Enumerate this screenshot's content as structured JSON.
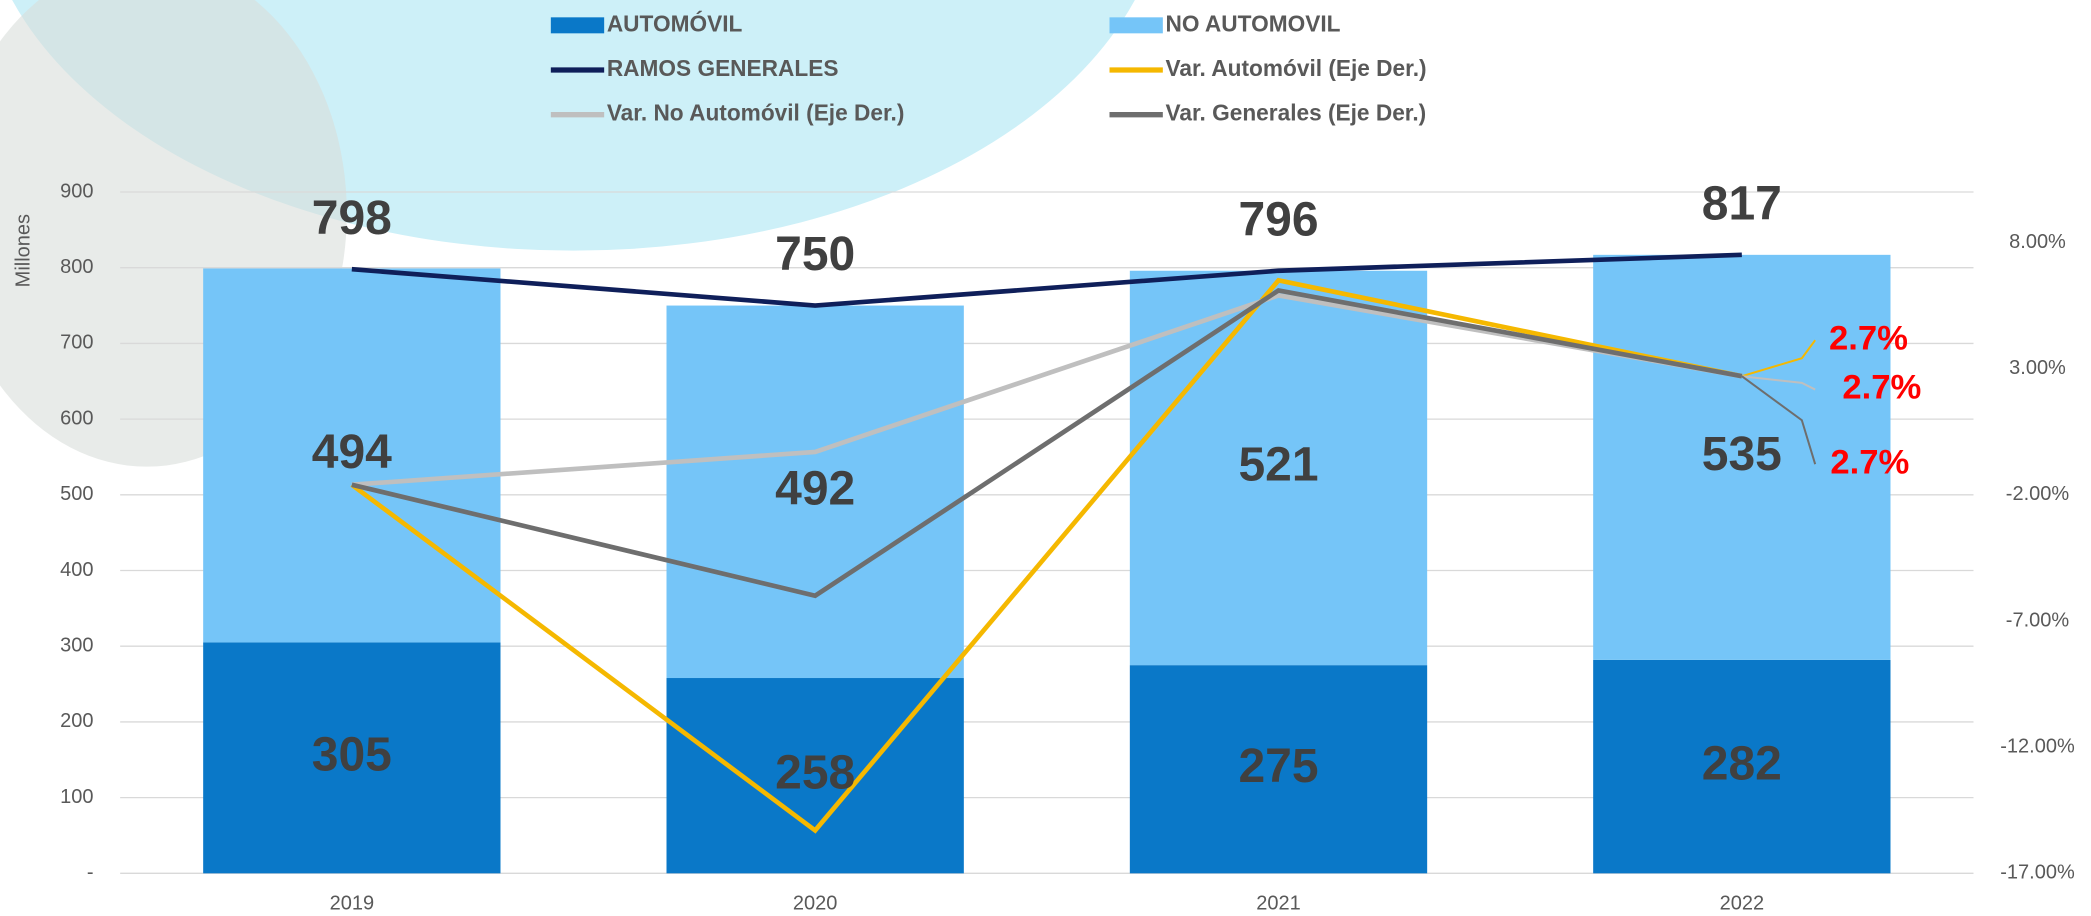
{
  "chart_data": {
    "type": "bar",
    "categories": [
      "2019",
      "2020",
      "2021",
      "2022"
    ],
    "y_label": "Millones",
    "ylim": [
      0,
      900
    ],
    "yticks": [
      {
        "value": 0,
        "label": "-"
      },
      100,
      200,
      300,
      400,
      500,
      600,
      700,
      800,
      900
    ],
    "y2lim": [
      -17,
      10
    ],
    "y2ticks": [
      {
        "value": -17,
        "label": "-17.00%"
      },
      {
        "value": -12,
        "label": "-12.00%"
      },
      {
        "value": -7,
        "label": "-7.00%"
      },
      {
        "value": -2,
        "label": "-2.00%"
      },
      {
        "value": 3,
        "label": "3.00%"
      },
      {
        "value": 8,
        "label": "8.00%"
      }
    ],
    "grid": true,
    "series": [
      {
        "name": "AUTOMÓVIL",
        "type": "bar",
        "color": "#0a78c8",
        "values": [
          305,
          258,
          275,
          282
        ]
      },
      {
        "name": "NO AUTOMOVIL",
        "type": "bar",
        "color": "#75c5f8",
        "values": [
          494,
          492,
          521,
          535
        ]
      },
      {
        "name": "RAMOS GENERALES",
        "type": "line",
        "color": "#0f1f5a",
        "values": [
          798,
          750,
          796,
          817
        ]
      },
      {
        "name": "Var. Automóvil (Eje Der.)",
        "type": "line",
        "axis": "y2",
        "color": "#f5b800",
        "values": [
          -1.6,
          -15.3,
          6.5,
          2.7
        ],
        "value_labels": [
          null,
          null,
          null,
          "2.7%"
        ]
      },
      {
        "name": "Var. No Automóvil (Eje Der.)",
        "type": "line",
        "axis": "y2",
        "color": "#bfbfbf",
        "values": [
          -1.6,
          -0.3,
          5.9,
          2.7
        ],
        "value_labels": [
          null,
          null,
          null,
          "2.7%"
        ]
      },
      {
        "name": "Var. Generales (Eje Der.)",
        "type": "line",
        "axis": "y2",
        "color": "#6e6e6e",
        "values": [
          -1.6,
          -6.0,
          6.1,
          2.7
        ],
        "value_labels": [
          null,
          null,
          null,
          "2.7%"
        ]
      }
    ]
  }
}
